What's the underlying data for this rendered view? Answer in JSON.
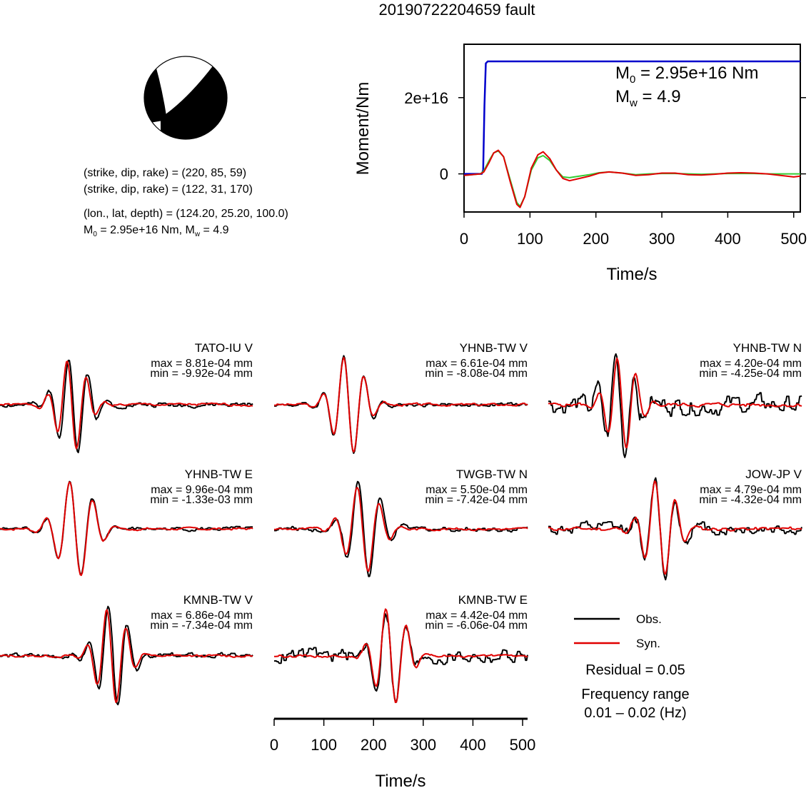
{
  "figure": {
    "title": "20190722204659 fault"
  },
  "focal": {
    "lines": [
      "(strike, dip, rake) = (220, 85, 59)",
      "(strike, dip, rake) = (122, 31, 170)",
      "(lon., lat, depth) = (124.20, 25.20, 100.0)"
    ],
    "m0_mw_prefix": "M",
    "m0_sub": "0",
    "m0_value": " = 2.95e+16 Nm, M",
    "mw_sub": "w",
    "mw_value": " = 4.9"
  },
  "legend": {
    "obs_label": "Obs.",
    "syn_label": "Syn.",
    "residual": "Residual = 0.05",
    "freq_title": "Frequency range",
    "freq_value": "0.01 – 0.02 (Hz)",
    "obs_color": "#000000",
    "syn_color": "#e00000"
  },
  "chart_data": [
    {
      "type": "line",
      "name": "moment-rate",
      "xlabel": "Time/s",
      "ylabel": "Moment/Nm",
      "xlim": [
        0,
        510
      ],
      "ylim": [
        -1e+16,
        3.4e+16
      ],
      "xticks": [
        0,
        100,
        200,
        300,
        400,
        500
      ],
      "yticks": [
        0,
        2e+16
      ],
      "ytick_labels": [
        "0",
        "2e+16"
      ],
      "annotation": {
        "m0_prefix": "M",
        "m0_sub": "0",
        "m0_text": " = 2.95e+16 Nm",
        "mw_prefix": "M",
        "mw_sub": "w",
        "mw_text": " = 4.9"
      },
      "series": [
        {
          "color": "#0000cc",
          "x": [
            0,
            27,
            29,
            31,
            33,
            36,
            40,
            60,
            100,
            200,
            300,
            400,
            510
          ],
          "y": [
            0,
            0,
            1000000000000000.0,
            1.8e+16,
            2.9e+16,
            2.95e+16,
            2.95e+16,
            2.95e+16,
            2.95e+16,
            2.95e+16,
            2.95e+16,
            2.95e+16,
            2.95e+16
          ]
        },
        {
          "color": "#e00000",
          "x": [
            0,
            25,
            30,
            38,
            45,
            52,
            60,
            70,
            80,
            85,
            92,
            102,
            112,
            120,
            130,
            140,
            150,
            160,
            175,
            190,
            205,
            220,
            240,
            260,
            280,
            300,
            320,
            340,
            360,
            380,
            400,
            420,
            440,
            460,
            480,
            500,
            510
          ],
          "y": [
            -400000000000000.0,
            0,
            500000000000000.0,
            3000000000000000.0,
            5500000000000000.0,
            6200000000000000.0,
            4500000000000000.0,
            -2000000000000000.0,
            -8000000000000000.0,
            -8800000000000000.0,
            -6000000000000000.0,
            1500000000000000.0,
            5000000000000000.0,
            5800000000000000.0,
            4000000000000000.0,
            1000000000000000.0,
            -1200000000000000.0,
            -1800000000000000.0,
            -1200000000000000.0,
            -600000000000000.0,
            200000000000000.0,
            500000000000000.0,
            200000000000000.0,
            -400000000000000.0,
            -200000000000000.0,
            200000000000000.0,
            200000000000000.0,
            -200000000000000.0,
            -300000000000000.0,
            -100000000000000.0,
            200000000000000.0,
            300000000000000.0,
            200000000000000.0,
            0,
            -400000000000000.0,
            -800000000000000.0,
            -600000000000000.0
          ]
        },
        {
          "color": "#33cc33",
          "x": [
            0,
            25,
            30,
            38,
            45,
            52,
            60,
            70,
            80,
            85,
            92,
            102,
            112,
            120,
            130,
            140,
            150,
            160,
            175,
            190,
            205,
            220,
            240,
            260,
            280,
            300,
            320,
            340,
            360,
            380,
            400,
            420,
            440,
            460,
            480,
            500,
            510
          ],
          "y": [
            -400000000000000.0,
            0,
            800000000000000.0,
            3500000000000000.0,
            5500000000000000.0,
            6000000000000000.0,
            4500000000000000.0,
            -1500000000000000.0,
            -7500000000000000.0,
            -8500000000000000.0,
            -6000000000000000.0,
            1000000000000000.0,
            4200000000000000.0,
            4800000000000000.0,
            3500000000000000.0,
            1000000000000000.0,
            -800000000000000.0,
            -1000000000000000.0,
            -600000000000000.0,
            -200000000000000.0,
            300000000000000.0,
            500000000000000.0,
            200000000000000.0,
            -200000000000000.0,
            0,
            100000000000000.0,
            100000000000000.0,
            0,
            -100000000000000.0,
            0,
            100000000000000.0,
            100000000000000.0,
            100000000000000.0,
            0,
            0,
            0,
            0
          ]
        }
      ]
    },
    {
      "type": "line",
      "name": "waveforms",
      "xlabel": "Time/s",
      "xlim": [
        0,
        510
      ],
      "xticks": [
        0,
        100,
        200,
        300,
        400,
        500
      ],
      "series": [
        {
          "name": "Obs."
        },
        {
          "name": "Syn."
        }
      ],
      "panels": [
        {
          "station": "TATO-IU V",
          "max": "max = 8.81e-04 mm",
          "min": "min = -9.92e-04 mm",
          "max_value": 0.000881,
          "min_value": -0.000992,
          "syn": {
            "center": 145,
            "period": 40,
            "sigma": 28,
            "amp": 0.92,
            "phase": 0.0,
            "noise": 0.02,
            "seed": 1
          },
          "obs": {
            "center": 148,
            "period": 40,
            "sigma": 30,
            "amp": 1.0,
            "phase": 0.0,
            "noise": 0.04,
            "seed": 2
          }
        },
        {
          "station": "YHNB-TW V",
          "max": "max = 6.61e-04 mm",
          "min": "min = -8.08e-04 mm",
          "max_value": 0.000661,
          "min_value": -0.000808,
          "syn": {
            "center": 150,
            "period": 42,
            "sigma": 30,
            "amp": 1.0,
            "phase": 0.0,
            "noise": 0.02,
            "seed": 3
          },
          "obs": {
            "center": 150,
            "period": 42,
            "sigma": 30,
            "amp": 1.0,
            "phase": 0.0,
            "noise": 0.03,
            "seed": 4
          }
        },
        {
          "station": "YHNB-TW N",
          "max": "max = 4.20e-04 mm",
          "min": "min = -4.25e-04 mm",
          "max_value": 0.00042,
          "min_value": -0.000425,
          "syn": {
            "center": 148,
            "period": 38,
            "sigma": 28,
            "amp": 0.95,
            "phase": 0.0,
            "noise": 0.03,
            "seed": 5
          },
          "obs": {
            "center": 145,
            "period": 38,
            "sigma": 30,
            "amp": 1.0,
            "phase": 0.0,
            "noise": 0.15,
            "seed": 6
          }
        },
        {
          "station": "YHNB-TW E",
          "max": "max = 9.96e-04 mm",
          "min": "min = -1.33e-03 mm",
          "max_value": 0.000996,
          "min_value": -0.00133,
          "syn": {
            "center": 152,
            "period": 48,
            "sigma": 34,
            "amp": 1.0,
            "phase": 0.0,
            "noise": 0.02,
            "seed": 7
          },
          "obs": {
            "center": 152,
            "period": 48,
            "sigma": 34,
            "amp": 1.0,
            "phase": 0.0,
            "noise": 0.03,
            "seed": 8
          }
        },
        {
          "station": "TWGB-TW N",
          "max": "max = 5.50e-04 mm",
          "min": "min = -7.42e-04 mm",
          "max_value": 0.00055,
          "min_value": -0.000742,
          "syn": {
            "center": 178,
            "period": 46,
            "sigma": 32,
            "amp": 0.9,
            "phase": 0.0,
            "noise": 0.02,
            "seed": 9
          },
          "obs": {
            "center": 180,
            "period": 46,
            "sigma": 32,
            "amp": 1.0,
            "phase": 0.0,
            "noise": 0.04,
            "seed": 10
          }
        },
        {
          "station": "JOW-JP V",
          "max": "max = 4.79e-04 mm",
          "min": "min = -4.32e-04 mm",
          "max_value": 0.000479,
          "min_value": -0.000432,
          "syn": {
            "center": 225,
            "period": 42,
            "sigma": 30,
            "amp": 1.0,
            "phase": 0.0,
            "noise": 0.03,
            "seed": 11
          },
          "obs": {
            "center": 225,
            "period": 42,
            "sigma": 30,
            "amp": 1.0,
            "phase": 0.0,
            "noise": 0.1,
            "seed": 12
          }
        },
        {
          "station": "KMNB-TW V",
          "max": "max = 6.86e-04 mm",
          "min": "min = -7.34e-04 mm",
          "max_value": 0.000686,
          "min_value": -0.000734,
          "syn": {
            "center": 225,
            "period": 40,
            "sigma": 28,
            "amp": 1.0,
            "phase": 0.0,
            "noise": 0.02,
            "seed": 13
          },
          "obs": {
            "center": 228,
            "period": 40,
            "sigma": 30,
            "amp": 1.0,
            "phase": 0.0,
            "noise": 0.04,
            "seed": 14
          }
        },
        {
          "station": "KMNB-TW E",
          "max": "max = 4.42e-04 mm",
          "min": "min = -6.06e-04 mm",
          "max_value": 0.000442,
          "min_value": -0.000606,
          "syn": {
            "center": 235,
            "period": 42,
            "sigma": 30,
            "amp": 1.0,
            "phase": 0.0,
            "noise": 0.02,
            "seed": 15
          },
          "obs": {
            "center": 235,
            "period": 42,
            "sigma": 30,
            "amp": 1.0,
            "phase": 0.0,
            "noise": 0.12,
            "seed": 16
          }
        }
      ]
    }
  ]
}
